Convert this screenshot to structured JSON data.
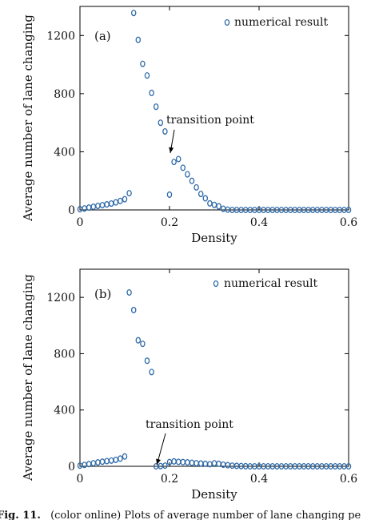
{
  "chart_data": [
    {
      "type": "scatter",
      "panel_label": "(a)",
      "xlabel": "Density",
      "ylabel": "Average number of lane changing",
      "xlim": [
        0,
        0.6
      ],
      "ylim": [
        0,
        1400
      ],
      "xticks": [
        "0",
        "0.2",
        "0.4",
        "0.6"
      ],
      "yticks": [
        "0",
        "400",
        "800",
        "1200"
      ],
      "legend": {
        "label": "numerical result",
        "position": "top-right"
      },
      "annotation": {
        "text": "transition point",
        "target": [
          0.2,
          380
        ]
      },
      "marker_color": "#2e6aa8",
      "series": [
        {
          "name": "numerical result",
          "points": [
            [
              0.0,
              5
            ],
            [
              0.01,
              10
            ],
            [
              0.02,
              16
            ],
            [
              0.03,
              22
            ],
            [
              0.04,
              28
            ],
            [
              0.05,
              33
            ],
            [
              0.06,
              38
            ],
            [
              0.07,
              44
            ],
            [
              0.08,
              52
            ],
            [
              0.09,
              62
            ],
            [
              0.1,
              74
            ],
            [
              0.11,
              115
            ],
            [
              0.12,
              1355
            ],
            [
              0.13,
              1170
            ],
            [
              0.14,
              1005
            ],
            [
              0.15,
              925
            ],
            [
              0.16,
              805
            ],
            [
              0.17,
              710
            ],
            [
              0.18,
              600
            ],
            [
              0.19,
              540
            ],
            [
              0.2,
              105
            ],
            [
              0.21,
              330
            ],
            [
              0.22,
              350
            ],
            [
              0.23,
              290
            ],
            [
              0.24,
              245
            ],
            [
              0.25,
              200
            ],
            [
              0.26,
              155
            ],
            [
              0.27,
              110
            ],
            [
              0.28,
              80
            ],
            [
              0.29,
              45
            ],
            [
              0.3,
              35
            ],
            [
              0.31,
              25
            ],
            [
              0.32,
              8
            ],
            [
              0.33,
              2
            ],
            [
              0.34,
              0
            ],
            [
              0.35,
              0
            ],
            [
              0.36,
              0
            ],
            [
              0.37,
              0
            ],
            [
              0.38,
              0
            ],
            [
              0.39,
              0
            ],
            [
              0.4,
              0
            ],
            [
              0.41,
              0
            ],
            [
              0.42,
              0
            ],
            [
              0.43,
              0
            ],
            [
              0.44,
              0
            ],
            [
              0.45,
              0
            ],
            [
              0.46,
              0
            ],
            [
              0.47,
              0
            ],
            [
              0.48,
              0
            ],
            [
              0.49,
              0
            ],
            [
              0.5,
              0
            ],
            [
              0.51,
              0
            ],
            [
              0.52,
              0
            ],
            [
              0.53,
              0
            ],
            [
              0.54,
              0
            ],
            [
              0.55,
              0
            ],
            [
              0.56,
              0
            ],
            [
              0.57,
              0
            ],
            [
              0.58,
              0
            ],
            [
              0.59,
              0
            ],
            [
              0.6,
              0
            ]
          ]
        }
      ]
    },
    {
      "type": "scatter",
      "panel_label": "(b)",
      "xlabel": "Density",
      "ylabel": "Average number of lane changing",
      "xlim": [
        0,
        0.6
      ],
      "ylim": [
        0,
        1400
      ],
      "xticks": [
        "0",
        "0.2",
        "0.4",
        "0.6"
      ],
      "yticks": [
        "0",
        "400",
        "800",
        "1200"
      ],
      "legend": {
        "label": "numerical result",
        "position": "top-right"
      },
      "annotation": {
        "text": "transition point",
        "target": [
          0.17,
          0
        ]
      },
      "marker_color": "#2e6aa8",
      "series": [
        {
          "name": "numerical result",
          "points": [
            [
              0.0,
              5
            ],
            [
              0.01,
              10
            ],
            [
              0.02,
              16
            ],
            [
              0.03,
              22
            ],
            [
              0.04,
              28
            ],
            [
              0.05,
              33
            ],
            [
              0.06,
              37
            ],
            [
              0.07,
              41
            ],
            [
              0.08,
              46
            ],
            [
              0.09,
              55
            ],
            [
              0.1,
              70
            ],
            [
              0.11,
              1235
            ],
            [
              0.12,
              1110
            ],
            [
              0.13,
              895
            ],
            [
              0.14,
              870
            ],
            [
              0.15,
              750
            ],
            [
              0.16,
              670
            ],
            [
              0.17,
              0
            ],
            [
              0.18,
              2
            ],
            [
              0.19,
              5
            ],
            [
              0.2,
              30
            ],
            [
              0.21,
              35
            ],
            [
              0.22,
              32
            ],
            [
              0.23,
              30
            ],
            [
              0.24,
              28
            ],
            [
              0.25,
              25
            ],
            [
              0.26,
              22
            ],
            [
              0.27,
              20
            ],
            [
              0.28,
              18
            ],
            [
              0.29,
              15
            ],
            [
              0.3,
              22
            ],
            [
              0.31,
              18
            ],
            [
              0.32,
              12
            ],
            [
              0.33,
              8
            ],
            [
              0.34,
              5
            ],
            [
              0.35,
              3
            ],
            [
              0.36,
              2
            ],
            [
              0.37,
              1
            ],
            [
              0.38,
              0
            ],
            [
              0.39,
              0
            ],
            [
              0.4,
              0
            ],
            [
              0.41,
              0
            ],
            [
              0.42,
              0
            ],
            [
              0.43,
              0
            ],
            [
              0.44,
              0
            ],
            [
              0.45,
              0
            ],
            [
              0.46,
              0
            ],
            [
              0.47,
              0
            ],
            [
              0.48,
              0
            ],
            [
              0.49,
              0
            ],
            [
              0.5,
              0
            ],
            [
              0.51,
              0
            ],
            [
              0.52,
              0
            ],
            [
              0.53,
              0
            ],
            [
              0.54,
              0
            ],
            [
              0.55,
              0
            ],
            [
              0.56,
              0
            ],
            [
              0.57,
              0
            ],
            [
              0.58,
              0
            ],
            [
              0.59,
              0
            ],
            [
              0.6,
              0
            ]
          ]
        }
      ]
    }
  ],
  "caption": {
    "label": "Fig. 11.",
    "text": "(color online) Plots of average number of lane changing pe"
  }
}
